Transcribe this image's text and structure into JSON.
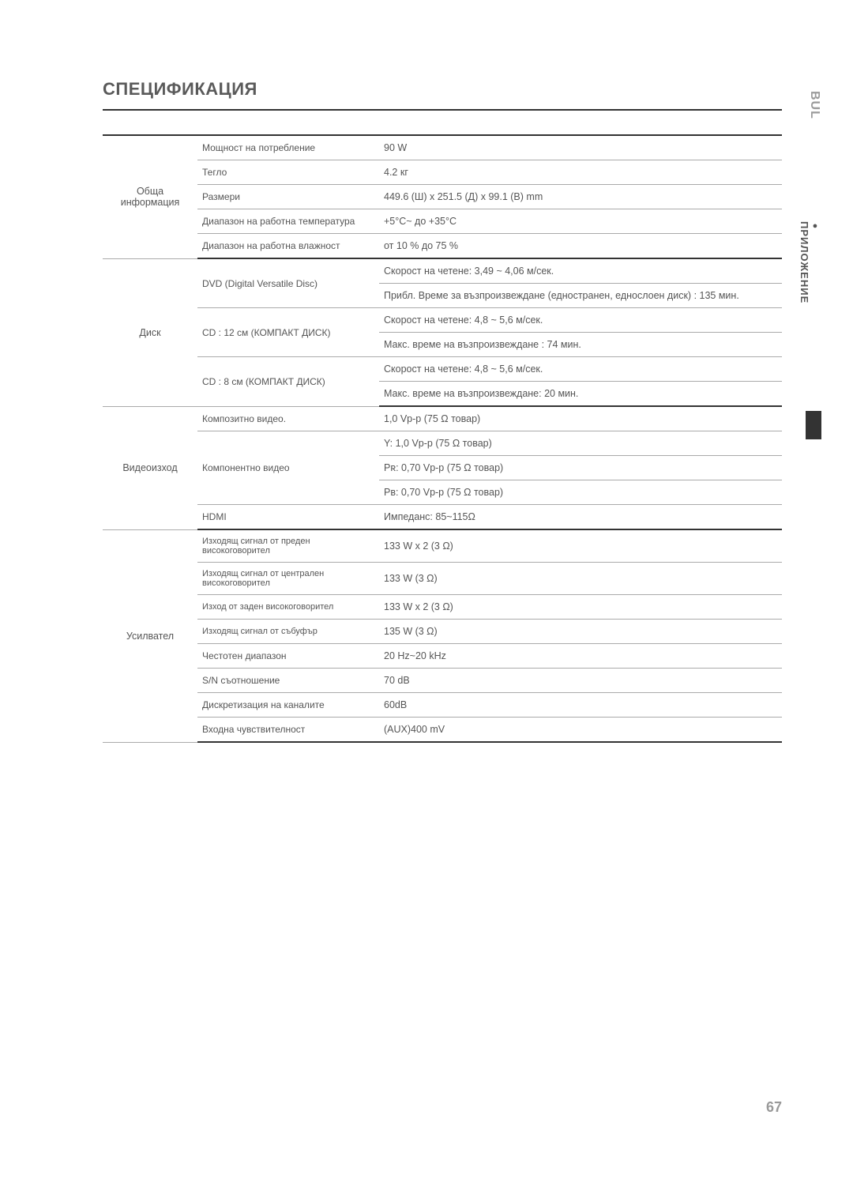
{
  "title": "СПЕЦИФИКАЦИЯ",
  "side_lang": "BUL",
  "side_section": "ПРИЛОЖЕНИЕ",
  "page_number": "67",
  "specs": {
    "general": {
      "category": "Обща информация",
      "rows": [
        {
          "param": "Мощност на потребление",
          "val": "90 W"
        },
        {
          "param": "Тегло",
          "val": "4.2 кг"
        },
        {
          "param": "Размери",
          "val": "449.6 (Ш) x 251.5 (Д) x 99.1 (В) mm"
        },
        {
          "param": "Диапазон на работна температура",
          "val": "+5°C~ до +35°C"
        },
        {
          "param": "Диапазон на работна влажност",
          "val": "от 10 % до 75 %"
        }
      ]
    },
    "disc": {
      "category": "Диск",
      "rows": [
        {
          "param": "DVD (Digital Versatile Disc)",
          "vals": [
            "Скорост на четене: 3,49 ~ 4,06 м/сек.",
            "Прибл. Време за възпроизвеждане (едностранен, еднослоен диск) : 135 мин."
          ]
        },
        {
          "param": "CD : 12 см (КОМПАКТ ДИСК)",
          "vals": [
            "Скорост на четене: 4,8 ~ 5,6 м/сек.",
            "Макс. време на възпроизвеждане : 74 мин."
          ]
        },
        {
          "param": "CD : 8 см (КОМПАКТ ДИСК)",
          "vals": [
            "Скорост на четене: 4,8 ~ 5,6 м/сек.",
            "Макс. време на възпроизвеждане: 20 мин."
          ]
        }
      ]
    },
    "video": {
      "category": "Видеоизход",
      "rows": [
        {
          "param": "Композитно видео.",
          "val": "1,0 Vp-p (75 Ω товар)"
        },
        {
          "param": "Компонентно видео",
          "vals": [
            "Y: 1,0 Vp-p (75 Ω товар)",
            "Pʀ: 0,70 Vp-p (75 Ω товар)",
            "Pʙ: 0,70 Vp-p (75 Ω товар)"
          ]
        },
        {
          "param": "HDMI",
          "val": "Импеданс: 85~115Ω"
        }
      ]
    },
    "amp": {
      "category": "Усилвател",
      "rows": [
        {
          "param": "Изходящ сигнал от преден високоговорител",
          "val": "133 W x 2 (3 Ω)",
          "small": true
        },
        {
          "param": "Изходящ сигнал от централен високоговорител",
          "val": "133 W (3 Ω)",
          "small": true
        },
        {
          "param": "Изход от заден високоговорител",
          "val": "133 W x 2 (3 Ω)",
          "small": true
        },
        {
          "param": "Изходящ сигнал от събуфър",
          "val": "135 W (3 Ω)",
          "small": true
        },
        {
          "param": "Честотен диапазон",
          "val": "20 Hz~20 kHz"
        },
        {
          "param": "S/N съотношение",
          "val": "70 dB"
        },
        {
          "param": "Дискретизация на каналите",
          "val": "60dB"
        },
        {
          "param": "Входна чувствителност",
          "val": "(AUX)400 mV"
        }
      ]
    }
  }
}
